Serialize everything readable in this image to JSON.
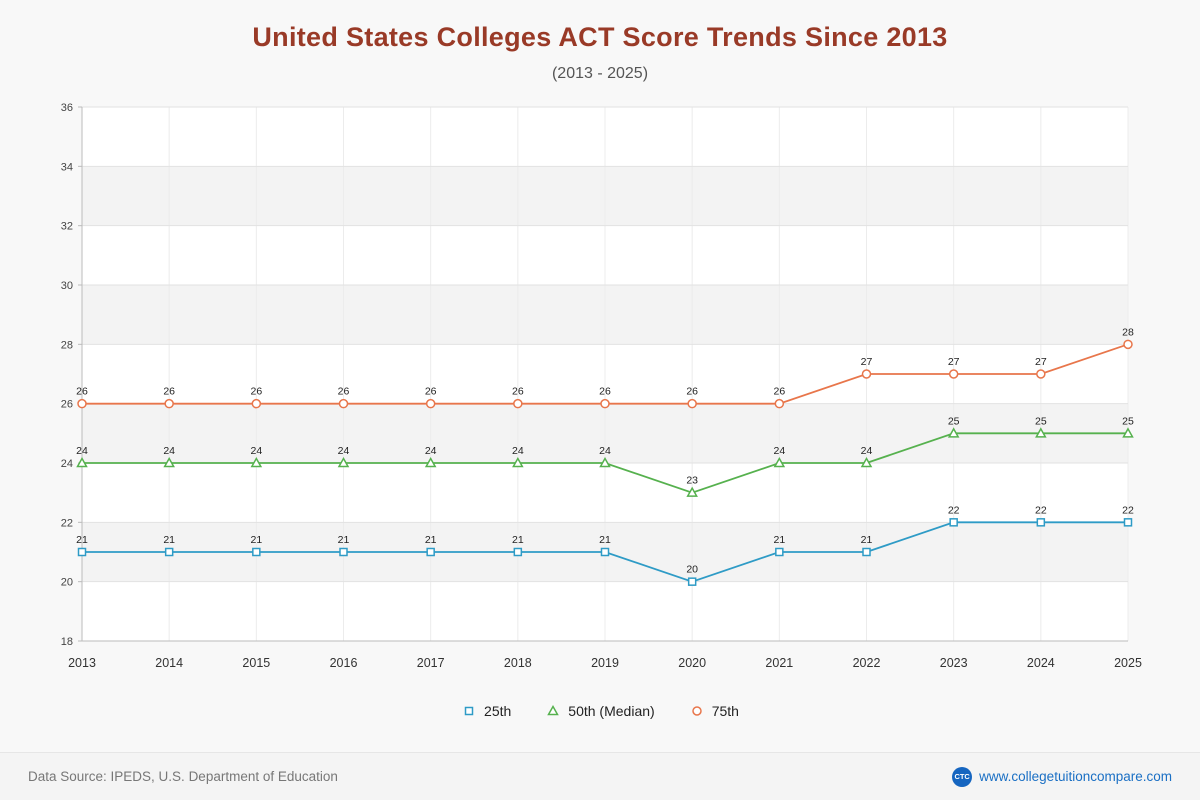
{
  "chart_data": {
    "type": "line",
    "title": "United States Colleges ACT Score Trends Since 2013",
    "subtitle": "(2013 - 2025)",
    "x": [
      2013,
      2014,
      2015,
      2016,
      2017,
      2018,
      2019,
      2020,
      2021,
      2022,
      2023,
      2024,
      2025
    ],
    "series": [
      {
        "name": "25th",
        "color": "#2e9bc6",
        "marker": "square",
        "values": [
          21,
          21,
          21,
          21,
          21,
          21,
          21,
          20,
          21,
          21,
          22,
          22,
          22
        ]
      },
      {
        "name": "50th (Median)",
        "color": "#56b14e",
        "marker": "triangle",
        "values": [
          24,
          24,
          24,
          24,
          24,
          24,
          24,
          23,
          24,
          24,
          25,
          25,
          25
        ]
      },
      {
        "name": "75th",
        "color": "#e8764b",
        "marker": "circle",
        "values": [
          26,
          26,
          26,
          26,
          26,
          26,
          26,
          26,
          26,
          27,
          27,
          27,
          28
        ]
      }
    ],
    "ylim": [
      18,
      36
    ],
    "ytick_step": 2,
    "grid": true,
    "band_fill": "#f3f3f3",
    "plot_fill": "#ffffff",
    "legend_position": "bottom"
  },
  "footer": {
    "source": "Data Source: IPEDS, U.S. Department of Education",
    "logo": "CTC",
    "site": "www.collegetuitioncompare.com"
  }
}
